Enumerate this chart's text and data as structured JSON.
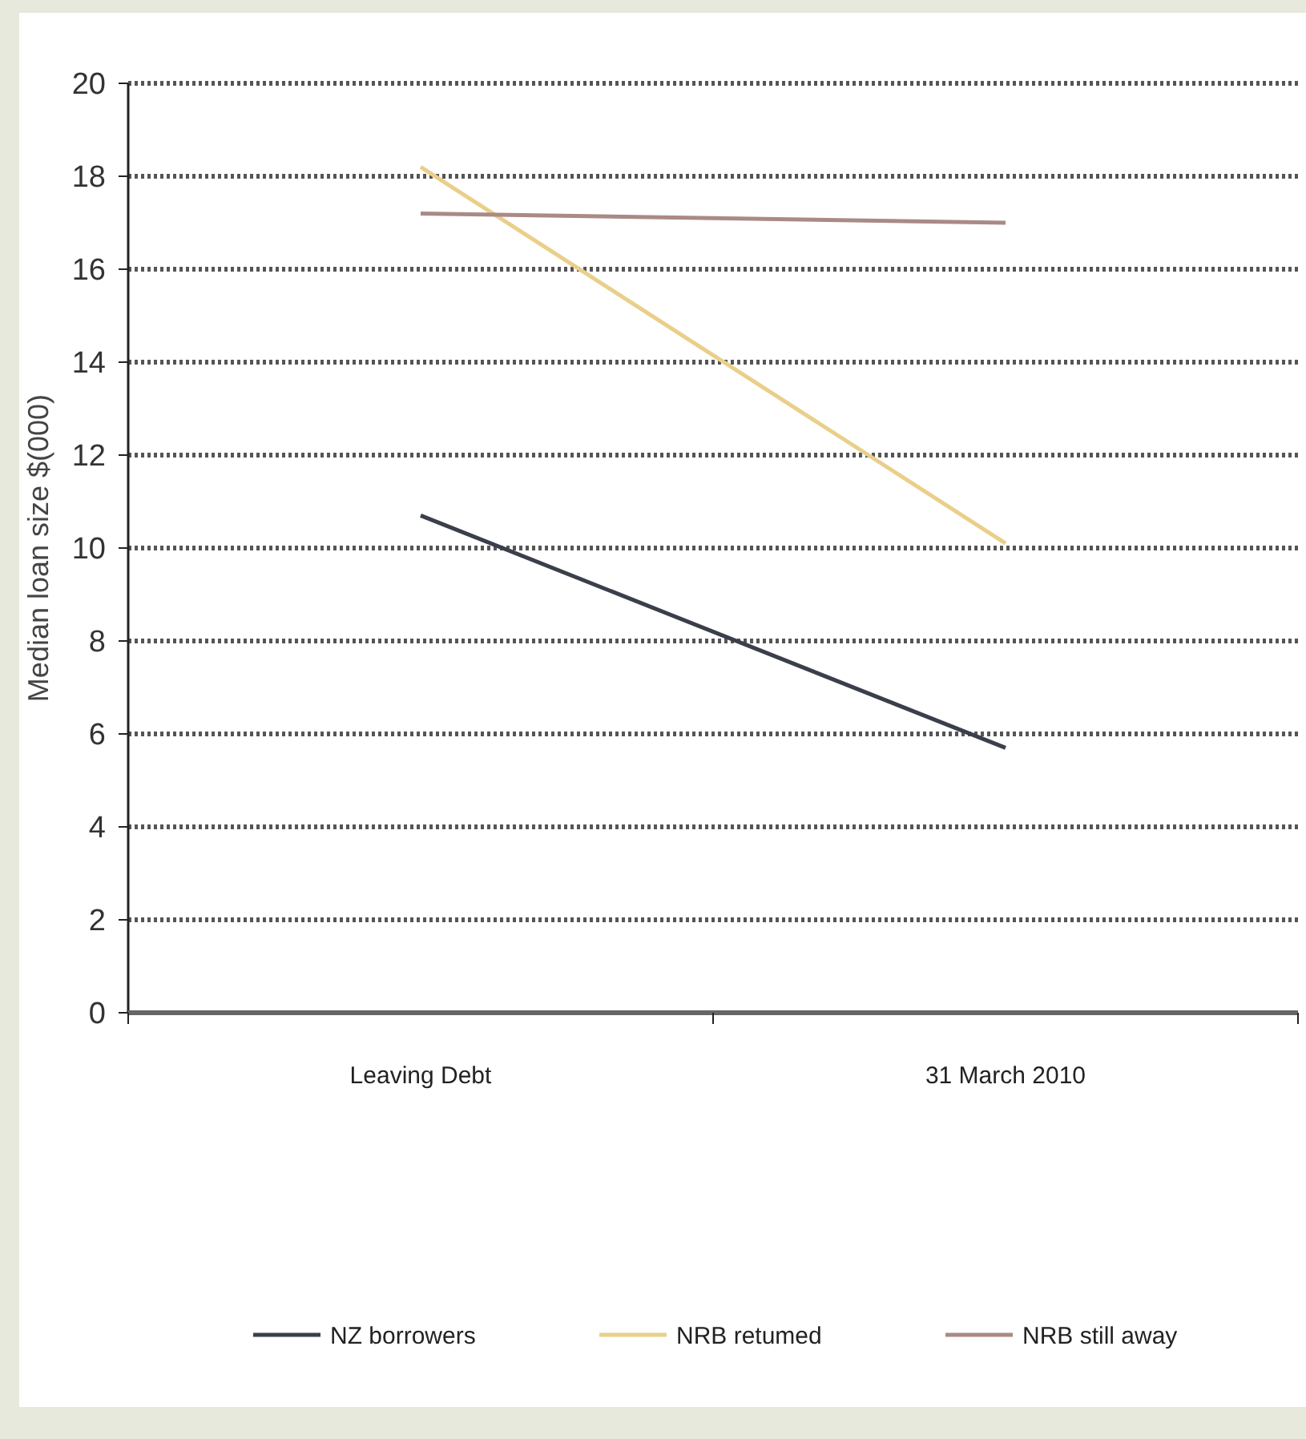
{
  "chart_data": {
    "type": "line",
    "ylabel": "Median loan size  $(000)",
    "categories": [
      "Leaving Debt",
      "31 March 2010"
    ],
    "series": [
      {
        "name": "NZ borrowers",
        "color": "#3a3f4a",
        "values": [
          10.7,
          5.7
        ]
      },
      {
        "name": "NRB retumed",
        "color": "#e9cf8a",
        "values": [
          18.2,
          10.1
        ]
      },
      {
        "name": "NRB still away",
        "color": "#a98a86",
        "values": [
          17.2,
          17.0
        ]
      }
    ],
    "ylim": [
      0,
      20
    ],
    "yticks": [
      0,
      2,
      4,
      6,
      8,
      10,
      12,
      14,
      16,
      18,
      20
    ],
    "grid": "y",
    "legend": "bottom",
    "marker": "none",
    "line_style": "solid"
  }
}
